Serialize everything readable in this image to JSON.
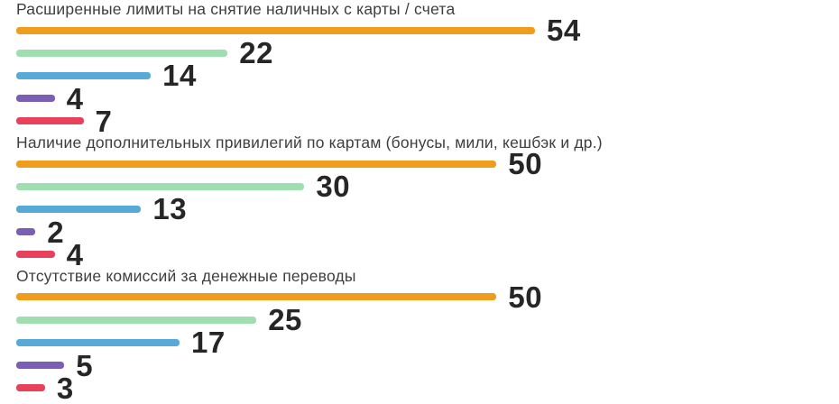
{
  "chart_data": {
    "type": "bar",
    "orientation": "horizontal",
    "title": "",
    "xlabel": "",
    "ylabel": "",
    "axis_max": 54,
    "grid": false,
    "legend": false,
    "background": "#ffffff",
    "title_color": "#3e3e3e",
    "value_label_color": "#262626",
    "series_colors": [
      "#f09c1c",
      "#9fdfaf",
      "#57a9d8",
      "#7a5fb5",
      "#e8425a"
    ],
    "groups": [
      {
        "title": "Расширенные лимиты на снятие наличных с карты / счета",
        "values": [
          54,
          22,
          14,
          4,
          7
        ]
      },
      {
        "title": "Наличие дополнительных привилегий по картам (бонусы, мили, кешбэк и др.)",
        "values": [
          50,
          30,
          13,
          2,
          4
        ]
      },
      {
        "title": "Отсутствие комиссий за денежные переводы",
        "values": [
          50,
          25,
          17,
          5,
          3
        ]
      }
    ]
  }
}
